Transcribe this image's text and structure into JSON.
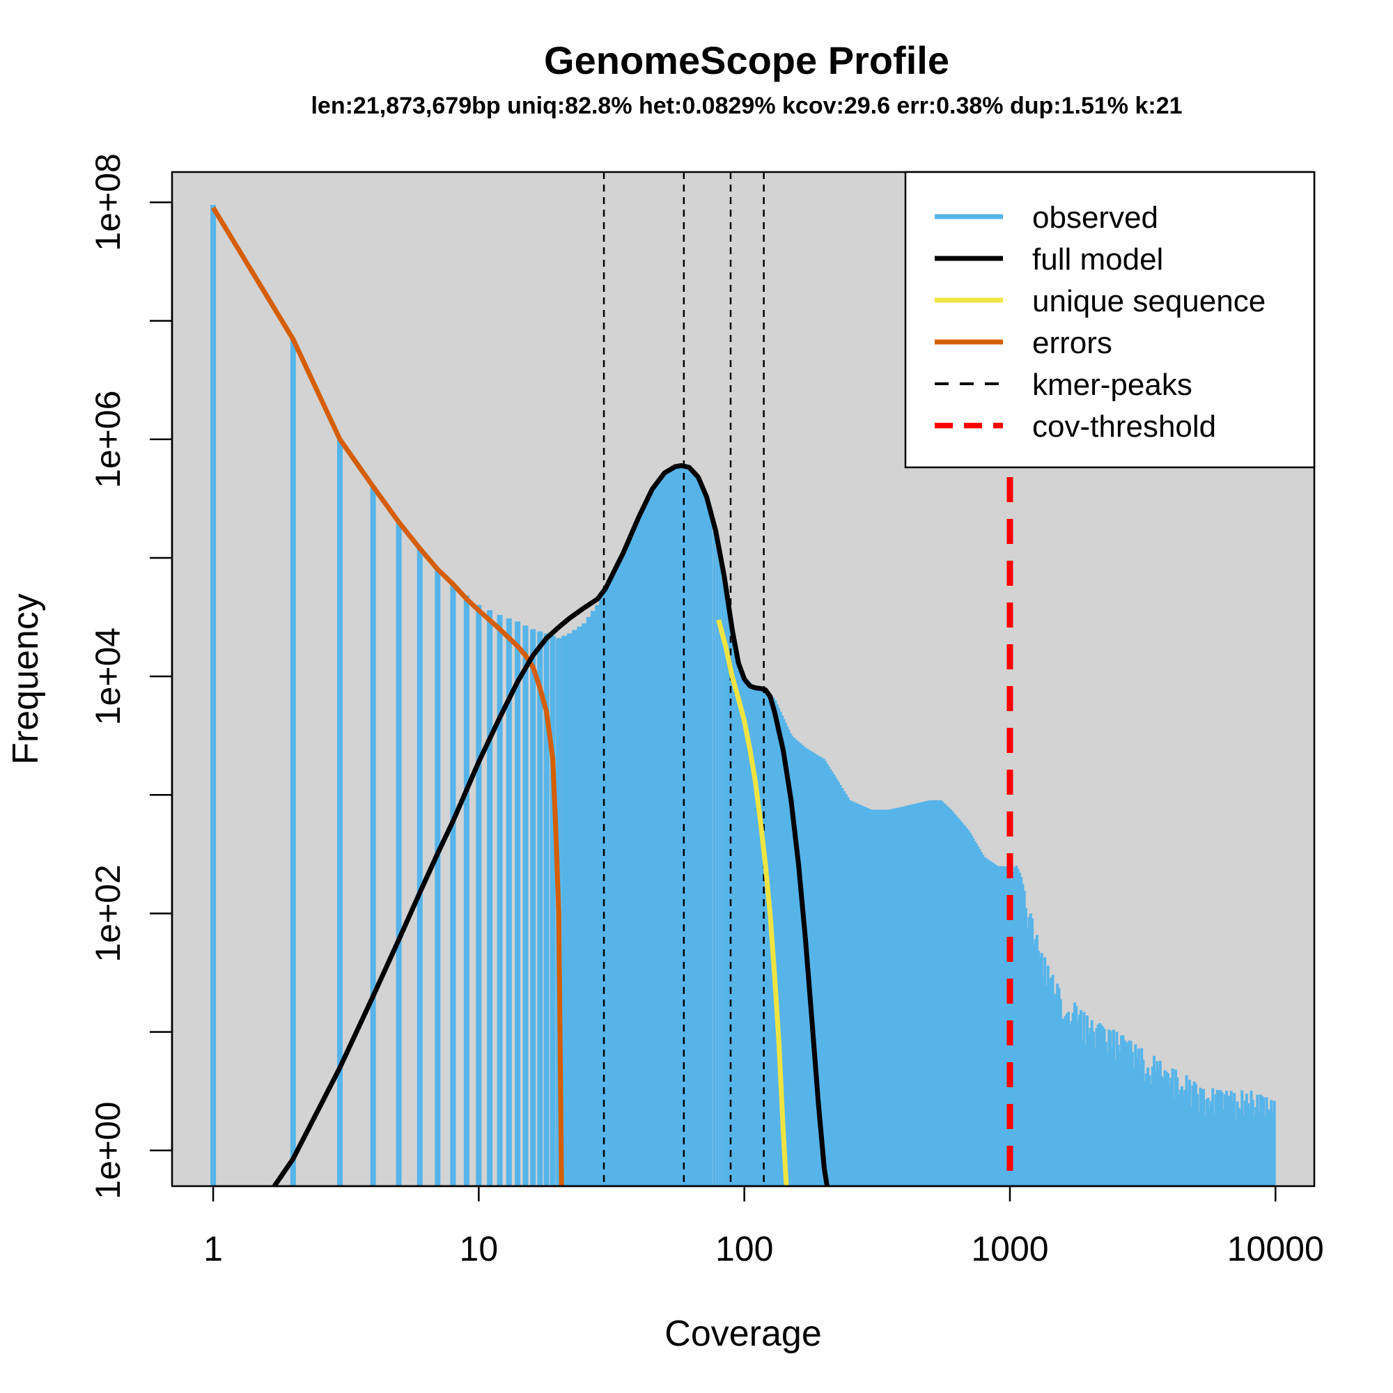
{
  "chart_data": {
    "type": "line",
    "title": "GenomeScope Profile",
    "subtitle": "len:21,873,679bp uniq:82.8%  het:0.0829% kcov:29.6 err:0.38%  dup:1.51%  k:21",
    "xlabel": "Coverage",
    "ylabel": "Frequency",
    "x_scale": "log10",
    "y_scale": "log10",
    "xlim": [
      0.7,
      14000
    ],
    "ylim": [
      0.5,
      180000000
    ],
    "x_ticks": [
      1,
      10,
      100,
      1000,
      10000
    ],
    "x_tick_labels": [
      "1",
      "10",
      "100",
      "1000",
      "10000"
    ],
    "y_ticks": [
      1,
      10,
      100,
      1000,
      10000,
      100000,
      1000000,
      10000000,
      100000000
    ],
    "y_tick_labels": [
      "1e+00",
      "",
      "1e+02",
      "",
      "1e+04",
      "",
      "1e+06",
      "",
      "1e+08"
    ],
    "legend": {
      "position": "top-right",
      "entries": [
        {
          "label": "observed",
          "color": "#56B4E9",
          "style": "solid"
        },
        {
          "label": "full model",
          "color": "#000000",
          "style": "solid"
        },
        {
          "label": "unique sequence",
          "color": "#F0E442",
          "style": "solid"
        },
        {
          "label": "errors",
          "color": "#D55E00",
          "style": "solid"
        },
        {
          "label": "kmer-peaks",
          "color": "#000000",
          "style": "dashed"
        },
        {
          "label": "cov-threshold",
          "color": "#FF0000",
          "style": "dashed-thick"
        }
      ]
    },
    "colors": {
      "background": "#D3D3D3",
      "observed": "#56B4E9",
      "full_model": "#000000",
      "unique": "#F0E442",
      "errors": "#D55E00",
      "peaks": "#000000",
      "threshold": "#FF0000"
    },
    "kmer_peaks": [
      29.6,
      59.2,
      88.8,
      118.4
    ],
    "cov_threshold": 1000,
    "observed": {
      "description_points": [
        [
          1,
          95000000
        ],
        [
          2,
          7000000
        ],
        [
          3,
          1000000
        ],
        [
          4,
          400000
        ],
        [
          5,
          200000
        ],
        [
          6,
          120000
        ],
        [
          7,
          80000
        ],
        [
          8,
          60000
        ],
        [
          9,
          48000
        ],
        [
          10,
          40000
        ],
        [
          12,
          33000
        ],
        [
          14,
          29000
        ],
        [
          16,
          25000
        ],
        [
          18,
          23000
        ],
        [
          20,
          21000
        ],
        [
          22,
          23000
        ],
        [
          25,
          28000
        ],
        [
          28,
          40000
        ],
        [
          30,
          55000
        ],
        [
          35,
          110000
        ],
        [
          40,
          220000
        ],
        [
          45,
          380000
        ],
        [
          50,
          520000
        ],
        [
          55,
          600000
        ],
        [
          60,
          580000
        ],
        [
          65,
          500000
        ],
        [
          70,
          360000
        ],
        [
          75,
          220000
        ],
        [
          80,
          110000
        ],
        [
          85,
          50000
        ],
        [
          90,
          25000
        ],
        [
          95,
          14000
        ],
        [
          100,
          10000
        ],
        [
          110,
          8000
        ],
        [
          120,
          7500
        ],
        [
          130,
          6500
        ],
        [
          140,
          4500
        ],
        [
          150,
          3200
        ],
        [
          170,
          2500
        ],
        [
          200,
          2000
        ],
        [
          250,
          900
        ],
        [
          300,
          750
        ],
        [
          350,
          750
        ],
        [
          400,
          800
        ],
        [
          450,
          850
        ],
        [
          500,
          900
        ],
        [
          550,
          900
        ],
        [
          600,
          750
        ],
        [
          700,
          500
        ],
        [
          800,
          300
        ],
        [
          900,
          250
        ],
        [
          1000,
          250
        ],
        [
          1100,
          170
        ],
        [
          1200,
          80
        ],
        [
          1300,
          40
        ],
        [
          1500,
          20
        ],
        [
          1700,
          15
        ],
        [
          2000,
          10
        ],
        [
          2500,
          8
        ],
        [
          3000,
          6
        ],
        [
          4000,
          4
        ],
        [
          5000,
          3
        ],
        [
          6000,
          2.5
        ],
        [
          8000,
          2.5
        ],
        [
          10000,
          2
        ]
      ]
    },
    "full_model": [
      [
        1.7,
        0.5
      ],
      [
        2,
        0.85
      ],
      [
        3,
        5
      ],
      [
        4,
        20
      ],
      [
        5,
        60
      ],
      [
        6,
        150
      ],
      [
        7,
        320
      ],
      [
        8,
        600
      ],
      [
        9,
        1100
      ],
      [
        10,
        1900
      ],
      [
        12,
        4500
      ],
      [
        14,
        9000
      ],
      [
        16,
        15000
      ],
      [
        18,
        21000
      ],
      [
        20,
        26000
      ],
      [
        22,
        31000
      ],
      [
        25,
        38000
      ],
      [
        28,
        45000
      ],
      [
        30,
        55000
      ],
      [
        35,
        110000
      ],
      [
        40,
        220000
      ],
      [
        45,
        380000
      ],
      [
        50,
        520000
      ],
      [
        55,
        590000
      ],
      [
        58,
        600000
      ],
      [
        62,
        580000
      ],
      [
        67,
        480000
      ],
      [
        72,
        330000
      ],
      [
        78,
        170000
      ],
      [
        84,
        70000
      ],
      [
        90,
        25000
      ],
      [
        95,
        13000
      ],
      [
        100,
        9500
      ],
      [
        105,
        8300
      ],
      [
        110,
        8000
      ],
      [
        115,
        7900
      ],
      [
        120,
        7700
      ],
      [
        125,
        6800
      ],
      [
        130,
        5000
      ],
      [
        140,
        2400
      ],
      [
        150,
        900
      ],
      [
        160,
        260
      ],
      [
        170,
        60
      ],
      [
        180,
        12
      ],
      [
        190,
        2.5
      ],
      [
        200,
        0.7
      ],
      [
        205,
        0.5
      ]
    ],
    "unique_sequence": [
      [
        80,
        30000
      ],
      [
        85,
        18000
      ],
      [
        90,
        10000
      ],
      [
        95,
        6500
      ],
      [
        100,
        4200
      ],
      [
        105,
        2400
      ],
      [
        110,
        1300
      ],
      [
        115,
        600
      ],
      [
        120,
        260
      ],
      [
        125,
        100
      ],
      [
        130,
        30
      ],
      [
        135,
        8
      ],
      [
        140,
        1.5
      ],
      [
        144,
        0.5
      ]
    ],
    "errors": [
      [
        1,
        90000000
      ],
      [
        2,
        7000000
      ],
      [
        3,
        1000000
      ],
      [
        4,
        400000
      ],
      [
        5,
        200000
      ],
      [
        6,
        120000
      ],
      [
        7,
        80000
      ],
      [
        8,
        60000
      ],
      [
        9,
        45000
      ],
      [
        10,
        36000
      ],
      [
        12,
        25000
      ],
      [
        14,
        18000
      ],
      [
        15,
        15000
      ],
      [
        16,
        12000
      ],
      [
        17,
        8000
      ],
      [
        18,
        5000
      ],
      [
        19,
        2000
      ],
      [
        19.5,
        500
      ],
      [
        20,
        100
      ],
      [
        20.3,
        5
      ],
      [
        20.5,
        0.5
      ]
    ]
  }
}
